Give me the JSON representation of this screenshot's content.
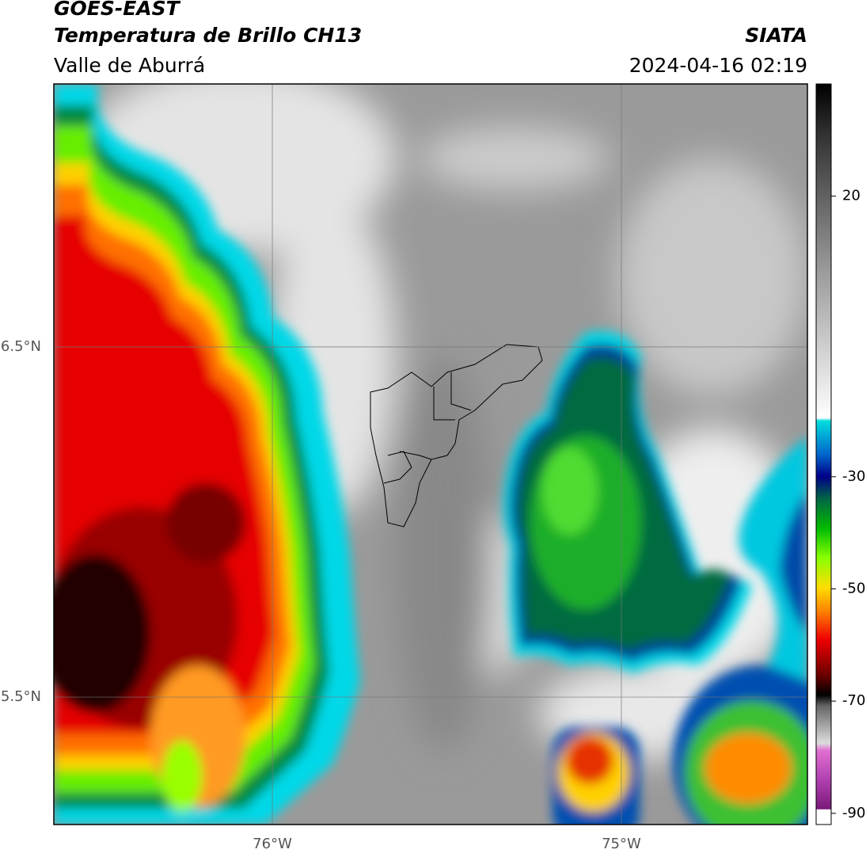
{
  "header": {
    "title": "GOES-EAST",
    "subtitle": "Temperatura de Brillo CH13",
    "region": "Valle de Aburrá",
    "source": "SIATA",
    "datetime": "2024-04-16 02:19"
  },
  "map": {
    "xlim": [
      -76.626,
      -74.467
    ],
    "ylim": [
      5.136,
      7.251
    ],
    "xticks": [
      {
        "value": -76,
        "label": "76°W"
      },
      {
        "value": -75,
        "label": "75°W"
      }
    ],
    "yticks": [
      {
        "value": 6.5,
        "label": "6.5°N"
      },
      {
        "value": 5.5,
        "label": "5.5°N"
      }
    ],
    "grid": true
  },
  "colorbar": {
    "lim": [
      -92,
      40
    ],
    "ticks": [
      20,
      -30,
      -50,
      -70,
      -90
    ]
  }
}
